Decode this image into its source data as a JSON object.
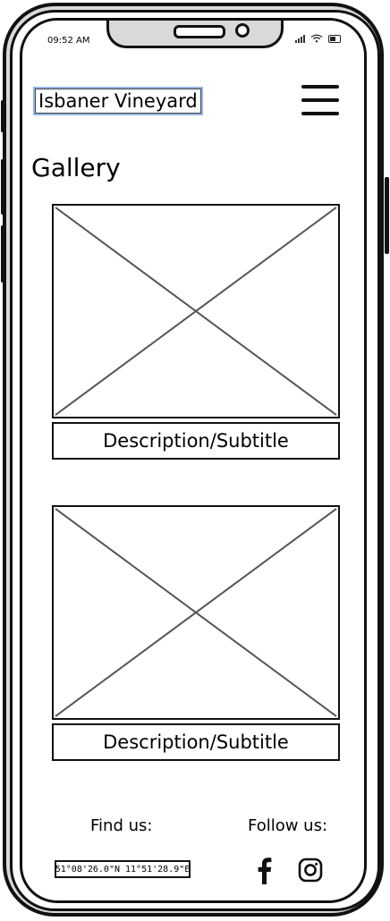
{
  "status_bar": {
    "time": "09:52 AM"
  },
  "header": {
    "brand": "Isbaner Vineyard",
    "menu_icon": "hamburger-menu-icon"
  },
  "page": {
    "title": "Gallery"
  },
  "gallery": {
    "items": [
      {
        "image_icon": "image-placeholder-icon",
        "caption": "Description/Subtitle"
      },
      {
        "image_icon": "image-placeholder-icon",
        "caption": "Description/Subtitle"
      }
    ]
  },
  "footer": {
    "find_label": "Find us:",
    "coordinates": "51°08'26.0\"N 11°51'28.9\"E",
    "follow_label": "Follow us:",
    "social": [
      {
        "icon": "facebook-icon"
      },
      {
        "icon": "instagram-icon"
      }
    ]
  }
}
